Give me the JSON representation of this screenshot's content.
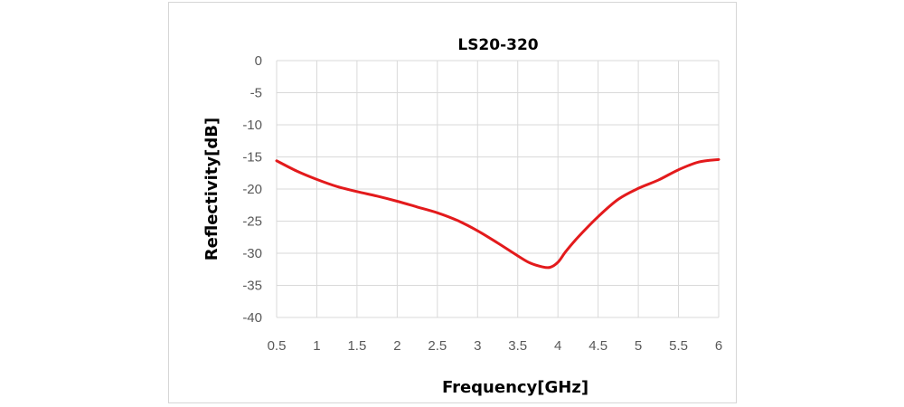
{
  "chart_data": {
    "type": "line",
    "title": "LS20-320",
    "xlabel": "Frequency[GHz]",
    "ylabel": "Reflectivity[dB]",
    "xlim": [
      0.5,
      6
    ],
    "ylim": [
      -40,
      0
    ],
    "x_ticks": [
      "0.5",
      "1",
      "1.5",
      "2",
      "2.5",
      "3",
      "3.5",
      "4",
      "4.5",
      "5",
      "5.5",
      "6"
    ],
    "y_ticks": [
      "0",
      "-5",
      "-10",
      "-15",
      "-20",
      "-25",
      "-30",
      "-35",
      "-40"
    ],
    "grid": true,
    "legend": "none",
    "series": [
      {
        "color": "#e31a1c",
        "x": [
          0.5,
          0.75,
          1.0,
          1.25,
          1.5,
          1.75,
          2.0,
          2.25,
          2.5,
          2.75,
          3.0,
          3.25,
          3.5,
          3.65,
          3.8,
          3.9,
          4.0,
          4.1,
          4.25,
          4.5,
          4.75,
          5.0,
          5.25,
          5.5,
          5.75,
          6.0
        ],
        "y": [
          -15.6,
          -17.2,
          -18.5,
          -19.6,
          -20.4,
          -21.1,
          -21.9,
          -22.8,
          -23.7,
          -24.9,
          -26.5,
          -28.4,
          -30.4,
          -31.5,
          -32.1,
          -32.2,
          -31.4,
          -29.7,
          -27.5,
          -24.3,
          -21.6,
          -19.9,
          -18.6,
          -17.0,
          -15.8,
          -15.4
        ]
      }
    ]
  }
}
